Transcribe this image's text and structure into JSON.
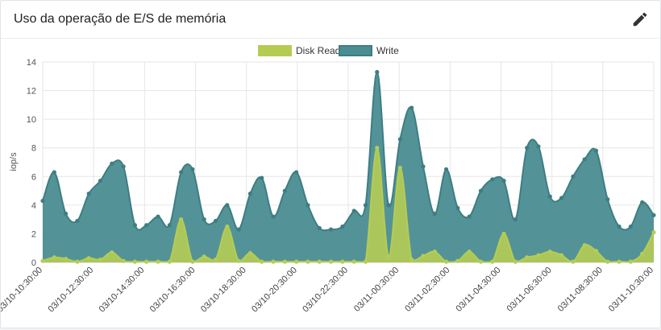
{
  "panel": {
    "title": "Uso da operação de E/S de memória",
    "edit_icon": "pencil-icon"
  },
  "chart_data": {
    "type": "area",
    "title": "",
    "xlabel": "",
    "ylabel": "iop/s",
    "ylim": [
      0,
      14
    ],
    "yticks": [
      0,
      2,
      4,
      6,
      8,
      10,
      12,
      14
    ],
    "grid": true,
    "legend_position": "top-center",
    "xtick_labels": [
      "03/10-10:30:00",
      "03/10-12:30:00",
      "03/10-14:30:00",
      "03/10-16:30:00",
      "03/10-18:30:00",
      "03/10-20:30:00",
      "03/10-22:30:00",
      "03/11-00:30:00",
      "03/11-02:30:00",
      "03/11-04:30:00",
      "03/11-06:30:00",
      "03/11-08:30:00",
      "03/11-10:30:00"
    ],
    "series": [
      {
        "name": "Disk Read",
        "color": "#b5cc54",
        "fill": "#b5cc54",
        "values": [
          0.1,
          0.35,
          0.25,
          0.05,
          0.3,
          0.2,
          0.7,
          0.1,
          0.05,
          0.05,
          0.05,
          0.05,
          3.0,
          0.05,
          0.4,
          0.2,
          2.5,
          0.1,
          0.65,
          0.05,
          0.05,
          0.05,
          0.05,
          0.05,
          0.05,
          0.05,
          0.05,
          0.05,
          0.05,
          8.0,
          0.4,
          6.6,
          0.2,
          0.45,
          0.75,
          0.05,
          0.1,
          0.75,
          0.05,
          0.05,
          2.0,
          0.05,
          0.35,
          0.5,
          0.75,
          0.5,
          0.05,
          1.2,
          0.8,
          0.05,
          0.05,
          0.05,
          0.6,
          2.1
        ]
      },
      {
        "name": "Write",
        "color": "#3d7e82",
        "fill": "#4a8d92",
        "values": [
          4.3,
          6.3,
          3.4,
          2.9,
          4.8,
          5.7,
          6.9,
          6.7,
          2.6,
          2.6,
          3.2,
          2.6,
          6.3,
          6.5,
          3.0,
          2.9,
          4.0,
          2.3,
          4.8,
          5.9,
          3.2,
          5.0,
          6.3,
          4.0,
          2.4,
          2.3,
          2.5,
          3.6,
          4.0,
          13.3,
          4.0,
          8.6,
          10.8,
          6.7,
          3.4,
          6.5,
          3.8,
          3.2,
          5.0,
          5.8,
          5.7,
          3.0,
          8.0,
          8.1,
          4.6,
          4.5,
          6.0,
          7.2,
          7.8,
          4.4,
          2.5,
          2.5,
          4.2,
          3.3
        ]
      }
    ]
  }
}
